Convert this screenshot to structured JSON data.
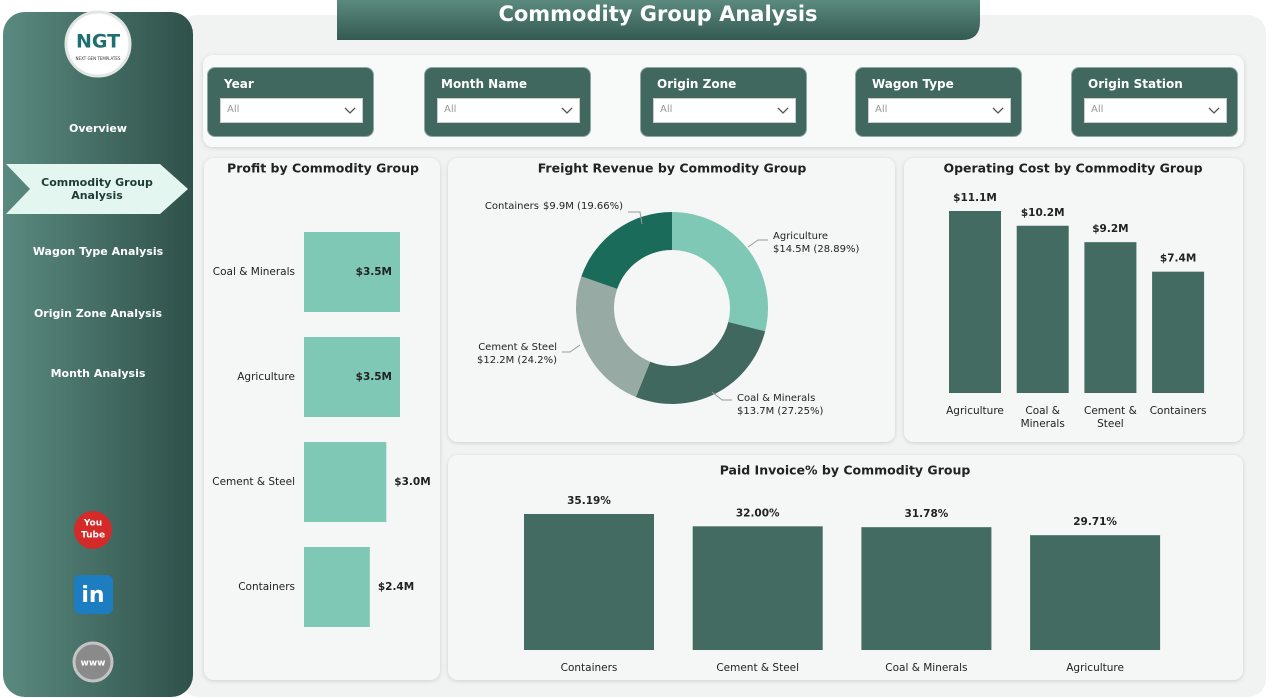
{
  "logo": {
    "text": "NGT",
    "subtitle": "NEXT GEN TEMPLATES"
  },
  "nav": [
    {
      "label": "Overview",
      "active": false
    },
    {
      "label": "Commodity Group Analysis",
      "active": true
    },
    {
      "label": "Wagon Type Analysis",
      "active": false
    },
    {
      "label": "Origin Zone Analysis",
      "active": false
    },
    {
      "label": "Month Analysis",
      "active": false
    }
  ],
  "social": {
    "youtube": [
      "You",
      "Tube"
    ],
    "linkedin": "in",
    "website": "www"
  },
  "header": {
    "title": "Commodity Group Analysis"
  },
  "filters": [
    {
      "label": "Year",
      "value": "All"
    },
    {
      "label": "Month Name",
      "value": "All"
    },
    {
      "label": "Origin Zone",
      "value": "All"
    },
    {
      "label": "Wagon Type",
      "value": "All"
    },
    {
      "label": "Origin Station",
      "value": "All"
    }
  ],
  "chart_data": [
    {
      "type": "hbar",
      "title": "Profit by Commodity Group",
      "categories": [
        "Coal & Minerals",
        "Agriculture",
        "Cement & Steel",
        "Containers"
      ],
      "values": [
        3.5,
        3.5,
        3.0,
        2.4
      ],
      "value_labels": [
        "$3.5M",
        "$3.5M",
        "$3.0M",
        "$2.4M"
      ],
      "color": "#7fc8b5"
    },
    {
      "type": "donut",
      "title": "Freight Revenue by Commodity Group",
      "categories": [
        "Agriculture",
        "Coal & Minerals",
        "Cement & Steel",
        "Containers"
      ],
      "values": [
        28.89,
        27.25,
        24.2,
        19.66
      ],
      "value_labels": [
        "$14.5M (28.89%)",
        "$13.7M (27.25%)",
        "$12.2M (24.2%)",
        "$9.9M (19.66%)"
      ],
      "colors": [
        "#7fc8b5",
        "#40685f",
        "#98aaa4",
        "#1b6b5a"
      ]
    },
    {
      "type": "bar",
      "title": "Operating Cost by Commodity Group",
      "categories": [
        "Agriculture",
        "Coal & Minerals",
        "Cement & Steel",
        "Containers"
      ],
      "values": [
        11.1,
        10.2,
        9.2,
        7.4
      ],
      "value_labels": [
        "$11.1M",
        "$10.2M",
        "$9.2M",
        "$7.4M"
      ],
      "color": "#436b61"
    },
    {
      "type": "bar",
      "title": "Paid Invoice% by Commodity Group",
      "categories": [
        "Containers",
        "Cement & Steel",
        "Coal & Minerals",
        "Agriculture"
      ],
      "values": [
        35.19,
        32,
        31.78,
        29.71
      ],
      "value_labels": [
        "35.19%",
        "32.00%",
        "31.78%",
        "29.71%"
      ],
      "color": "#436b61"
    }
  ]
}
